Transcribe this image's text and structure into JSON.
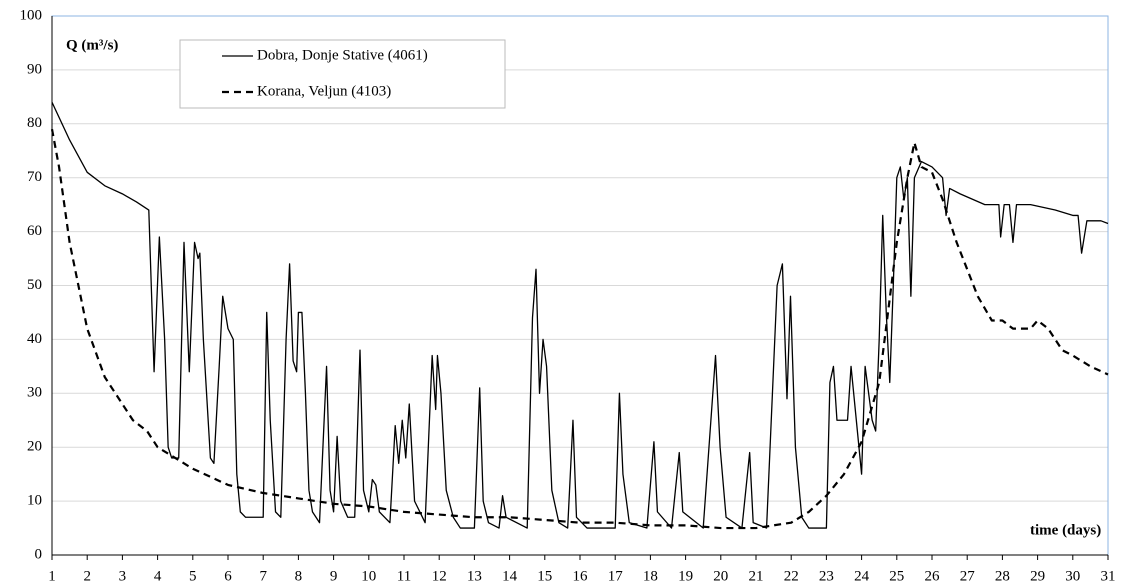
{
  "chart_data": {
    "type": "line",
    "y_label": "Q (m³/s)",
    "x_label": "time (days)",
    "xlim": [
      1,
      31
    ],
    "xticks": [
      1,
      2,
      3,
      4,
      5,
      6,
      7,
      8,
      9,
      10,
      11,
      12,
      13,
      14,
      15,
      16,
      17,
      18,
      19,
      20,
      21,
      22,
      23,
      24,
      25,
      26,
      27,
      28,
      29,
      30,
      31
    ],
    "ylim": [
      0,
      100
    ],
    "yticks": [
      0,
      10,
      20,
      30,
      40,
      50,
      60,
      70,
      80,
      90,
      100
    ],
    "grid": true,
    "series": [
      {
        "name": "Dobra, Donje Stative (4061)",
        "color": "#000000",
        "style": "solid",
        "x": [
          1,
          1.5,
          2,
          2.5,
          3,
          3.4,
          3.75,
          3.9,
          4.05,
          4.2,
          4.3,
          4.4,
          4.6,
          4.75,
          4.9,
          5.05,
          5.15,
          5.2,
          5.3,
          5.5,
          5.6,
          5.75,
          5.85,
          6,
          6.15,
          6.25,
          6.35,
          6.5,
          7,
          7.1,
          7.2,
          7.35,
          7.5,
          7.65,
          7.75,
          7.85,
          7.95,
          8,
          8.1,
          8.2,
          8.3,
          8.4,
          8.6,
          8.8,
          8.9,
          9,
          9.1,
          9.2,
          9.4,
          9.6,
          9.75,
          9.85,
          10,
          10.1,
          10.2,
          10.3,
          10.6,
          10.75,
          10.85,
          10.95,
          11.05,
          11.15,
          11.3,
          11.6,
          11.8,
          11.9,
          11.95,
          12.05,
          12.2,
          12.4,
          12.6,
          13,
          13.15,
          13.25,
          13.4,
          13.7,
          13.8,
          13.9,
          14.5,
          14.65,
          14.75,
          14.85,
          14.95,
          15.05,
          15.2,
          15.4,
          15.65,
          15.8,
          15.9,
          16.2,
          17,
          17.12,
          17.22,
          17.4,
          17.9,
          18.1,
          18.2,
          18.6,
          18.82,
          18.92,
          19.5,
          19.85,
          19.98,
          20.15,
          20.6,
          20.82,
          20.92,
          21.3,
          21.6,
          21.75,
          21.88,
          21.98,
          22.12,
          22.3,
          22.5,
          23,
          23.1,
          23.2,
          23.3,
          23.6,
          23.7,
          23.85,
          24,
          24.1,
          24.3,
          24.4,
          24.5,
          24.6,
          24.7,
          24.8,
          24.9,
          25,
          25.1,
          25.2,
          25.3,
          25.4,
          25.5,
          25.7,
          26,
          26.3,
          26.4,
          26.5,
          26.8,
          27.5,
          27.9,
          27.95,
          28.05,
          28.2,
          28.3,
          28.4,
          28.8,
          29.5,
          30,
          30.15,
          30.25,
          30.4,
          30.8,
          31
        ],
        "values": [
          84,
          77,
          71,
          68.5,
          67,
          65.5,
          64,
          34,
          59,
          40,
          20,
          18,
          18,
          58,
          34,
          58,
          55,
          56,
          40,
          18,
          17,
          35,
          48,
          42,
          40,
          15,
          8,
          7,
          7,
          45,
          25,
          8,
          7,
          40,
          54,
          36,
          34,
          45,
          45,
          30,
          12,
          8,
          6,
          35,
          12,
          8,
          22,
          10,
          7,
          7,
          38,
          12,
          8,
          14,
          13,
          8,
          6,
          24,
          17,
          25,
          18,
          28,
          10,
          6,
          37,
          27,
          37,
          30,
          12,
          7,
          5,
          5,
          31,
          10,
          6,
          5,
          11,
          7,
          5,
          44,
          53,
          30,
          40,
          35,
          12,
          6,
          5,
          25,
          7,
          5,
          5,
          30,
          15,
          6,
          5,
          21,
          8,
          5,
          19,
          8,
          5,
          37,
          20,
          7,
          5,
          19,
          6,
          5,
          50,
          54,
          29,
          48,
          20,
          7,
          5,
          5,
          32,
          35,
          25,
          25,
          35,
          25,
          15,
          35,
          25,
          23,
          40,
          63,
          45,
          32,
          50,
          70,
          72,
          66,
          70,
          48,
          70,
          73,
          72,
          70,
          63,
          68,
          67,
          65,
          65,
          59,
          65,
          65,
          58,
          65,
          65,
          64,
          63,
          63,
          56,
          62,
          62,
          61.5
        ]
      },
      {
        "name": "Korana, Veljun (4103)",
        "color": "#000000",
        "style": "dashed",
        "x": [
          1,
          1.2,
          1.5,
          2,
          2.5,
          3,
          3.3,
          3.7,
          4,
          4.5,
          5,
          5.5,
          6,
          7,
          8,
          9,
          10,
          11,
          12,
          13,
          14,
          15,
          16,
          17,
          18,
          19,
          20,
          21,
          22,
          22.5,
          23,
          23.5,
          24,
          24.5,
          25,
          25.3,
          25.5,
          25.7,
          26,
          26.3,
          26.7,
          27,
          27.3,
          27.7,
          28,
          28.3,
          28.8,
          29,
          29.3,
          29.7,
          30,
          30.5,
          31
        ],
        "values": [
          79,
          72,
          58,
          42,
          33,
          28,
          25,
          23,
          20,
          18,
          16,
          14.5,
          13,
          11.5,
          10.5,
          9.5,
          9,
          8,
          7.5,
          7,
          7,
          6.5,
          6,
          6,
          5.5,
          5.5,
          5,
          5,
          6,
          8,
          11,
          15,
          21,
          32,
          58,
          70,
          76.5,
          72,
          71,
          66,
          58,
          53,
          48,
          43.5,
          43.5,
          42,
          42,
          43.5,
          42,
          38,
          37,
          35,
          33.5
        ]
      }
    ]
  }
}
